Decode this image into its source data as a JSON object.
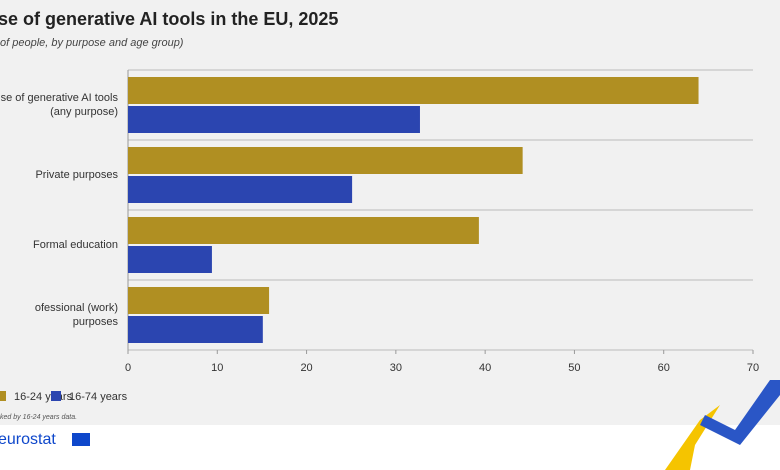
{
  "chart_data": {
    "type": "bar",
    "orientation": "horizontal",
    "title": "se of generative AI tools in the EU, 2025",
    "subtitle": "of people, by purpose and age group)",
    "categories": [
      "Use of generative AI tools (any purpose)",
      "Private purposes",
      "Formal education",
      "ofessional (work) purposes"
    ],
    "series": [
      {
        "name": "16-24 years",
        "color": "#b08f22",
        "values": [
          63.9,
          44.2,
          39.3,
          15.8
        ]
      },
      {
        "name": "16-74 years",
        "color": "#2b45b0",
        "values": [
          32.7,
          25.1,
          9.4,
          15.1
        ]
      }
    ],
    "xlim": [
      0,
      70
    ],
    "xticks": [
      0,
      10,
      20,
      30,
      40,
      50,
      60,
      70
    ],
    "note": "ked by 16-24 years data.",
    "brand": "eurostat"
  }
}
